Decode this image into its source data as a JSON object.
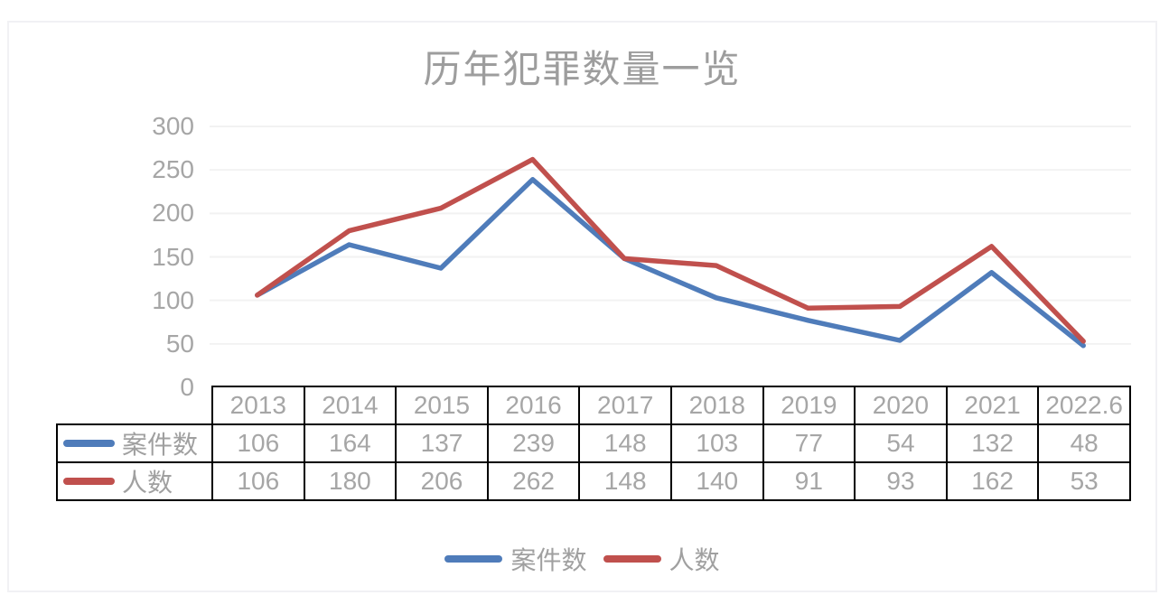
{
  "chart": {
    "title": "历年犯罪数量一览",
    "colors": {
      "series_cases": "#4f7cba",
      "series_persons": "#c0504d",
      "gridline": "#f2f2f2",
      "axis_text": "#a6a6a6",
      "title_text": "#9d9d9d",
      "table_border": "#000000"
    }
  },
  "chart_data": {
    "type": "line",
    "title": "历年犯罪数量一览",
    "categories": [
      "2013",
      "2014",
      "2015",
      "2016",
      "2017",
      "2018",
      "2019",
      "2020",
      "2021",
      "2022.6"
    ],
    "series": [
      {
        "key": "cases",
        "name": "案件数",
        "color": "#4f7cba",
        "values": [
          106,
          164,
          137,
          239,
          148,
          103,
          77,
          54,
          132,
          48
        ]
      },
      {
        "key": "persons",
        "name": "人数",
        "color": "#c0504d",
        "values": [
          106,
          180,
          206,
          262,
          148,
          140,
          91,
          93,
          162,
          53
        ]
      }
    ],
    "xlabel": "",
    "ylabel": "",
    "ylim": [
      0,
      300
    ],
    "yticks": [
      0,
      50,
      100,
      150,
      200,
      250,
      300
    ],
    "grid": true,
    "legend_position": "bottom",
    "data_table_shown": true
  }
}
